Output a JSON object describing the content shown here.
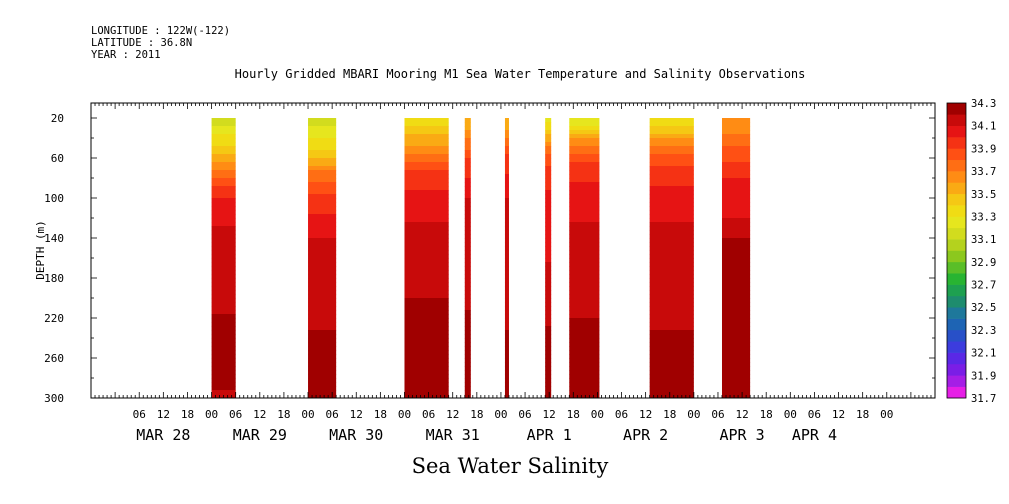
{
  "header": {
    "longitude": "LONGITUDE : 122W(-122)",
    "latitude": "LATITUDE : 36.8N",
    "year": "YEAR : 2011"
  },
  "title": "Hourly Gridded MBARI Mooring M1 Sea Water Temperature and Salinity Observations",
  "chart_data": {
    "type": "heatmap",
    "title": "Hourly Gridded MBARI Mooring M1 Sea Water Temperature and Salinity Observations",
    "variable": "Sea Water Salinity",
    "xlabel": "",
    "ylabel": "DEPTH (m)",
    "x_unit": "hours since 2011-03-27 18:00",
    "xlim": [
      0,
      210
    ],
    "ylim": [
      300,
      5
    ],
    "y_inverted": true,
    "yticks": [
      20,
      60,
      100,
      140,
      180,
      220,
      260,
      300
    ],
    "xticks": [
      {
        "x": 12,
        "label": "06"
      },
      {
        "x": 18,
        "label": "12"
      },
      {
        "x": 24,
        "label": "18"
      },
      {
        "x": 30,
        "label": "00"
      },
      {
        "x": 36,
        "label": "06"
      },
      {
        "x": 42,
        "label": "12"
      },
      {
        "x": 48,
        "label": "18"
      },
      {
        "x": 54,
        "label": "00"
      },
      {
        "x": 60,
        "label": "06"
      },
      {
        "x": 66,
        "label": "12"
      },
      {
        "x": 72,
        "label": "18"
      },
      {
        "x": 78,
        "label": "00"
      },
      {
        "x": 84,
        "label": "06"
      },
      {
        "x": 90,
        "label": "12"
      },
      {
        "x": 96,
        "label": "18"
      },
      {
        "x": 102,
        "label": "00"
      },
      {
        "x": 108,
        "label": "06"
      },
      {
        "x": 114,
        "label": "12"
      },
      {
        "x": 120,
        "label": "18"
      },
      {
        "x": 126,
        "label": "00"
      },
      {
        "x": 132,
        "label": "06"
      },
      {
        "x": 138,
        "label": "12"
      },
      {
        "x": 144,
        "label": "18"
      },
      {
        "x": 150,
        "label": "00"
      },
      {
        "x": 156,
        "label": "06"
      },
      {
        "x": 162,
        "label": "12"
      },
      {
        "x": 168,
        "label": "18"
      },
      {
        "x": 174,
        "label": "00"
      },
      {
        "x": 180,
        "label": "06"
      },
      {
        "x": 186,
        "label": "12"
      },
      {
        "x": 192,
        "label": "18"
      },
      {
        "x": 198,
        "label": "00"
      }
    ],
    "date_labels": [
      {
        "x": 18,
        "label": "MAR 28"
      },
      {
        "x": 42,
        "label": "MAR 29"
      },
      {
        "x": 66,
        "label": "MAR 30"
      },
      {
        "x": 90,
        "label": "MAR 31"
      },
      {
        "x": 114,
        "label": "APR  1"
      },
      {
        "x": 138,
        "label": "APR  2"
      },
      {
        "x": 162,
        "label": "APR  3"
      },
      {
        "x": 180,
        "label": "APR  4"
      }
    ],
    "colorbar": {
      "levels": [
        31.7,
        31.8,
        31.9,
        32.0,
        32.1,
        32.2,
        32.3,
        32.4,
        32.5,
        32.6,
        32.7,
        32.8,
        32.9,
        33.0,
        33.1,
        33.2,
        33.3,
        33.4,
        33.5,
        33.6,
        33.7,
        33.8,
        33.9,
        34.0,
        34.1,
        34.2,
        34.3
      ],
      "labels": [
        "34.3",
        "34.1",
        "33.9",
        "33.7",
        "33.5",
        "33.3",
        "33.1",
        "32.9",
        "32.7",
        "32.5",
        "32.3",
        "32.1",
        "31.9",
        "31.7"
      ],
      "colors": [
        "#e61ee6",
        "#a51ee6",
        "#7a1ee6",
        "#5a28e6",
        "#3c3cde",
        "#2850c8",
        "#1e64b4",
        "#1e789b",
        "#1e8c6e",
        "#1ea050",
        "#28b432",
        "#5abe28",
        "#8cc81e",
        "#b4d21e",
        "#d2dc1e",
        "#e6e61e",
        "#f0dc14",
        "#f5c814",
        "#faaa14",
        "#ff8c14",
        "#ff6e14",
        "#ff5014",
        "#f53214",
        "#e61414",
        "#c80a0a",
        "#a00000"
      ]
    },
    "segments": [
      {
        "x0": 30,
        "x1": 36,
        "layers": [
          [
            20,
            33.15
          ],
          [
            60,
            33.55
          ],
          [
            80,
            33.85
          ],
          [
            100,
            34.0
          ],
          [
            140,
            34.15
          ],
          [
            200,
            34.15
          ],
          [
            230,
            34.25
          ],
          [
            270,
            34.3
          ],
          [
            300,
            34.15
          ]
        ]
      },
      {
        "x0": 54,
        "x1": 61,
        "layers": [
          [
            20,
            33.15
          ],
          [
            50,
            33.4
          ],
          [
            75,
            33.75
          ],
          [
            100,
            33.95
          ],
          [
            140,
            34.1
          ],
          [
            200,
            34.15
          ],
          [
            230,
            34.2
          ],
          [
            260,
            34.3
          ],
          [
            300,
            34.25
          ]
        ]
      },
      {
        "x0": 78,
        "x1": 89,
        "layers": [
          [
            20,
            33.35
          ],
          [
            45,
            33.6
          ],
          [
            70,
            33.9
          ],
          [
            100,
            34.05
          ],
          [
            140,
            34.15
          ],
          [
            200,
            34.2
          ],
          [
            220,
            34.3
          ],
          [
            300,
            34.3
          ]
        ]
      },
      {
        "x0": 93,
        "x1": 94.5,
        "layers": [
          [
            20,
            33.5
          ],
          [
            60,
            33.9
          ],
          [
            100,
            34.1
          ],
          [
            200,
            34.15
          ],
          [
            220,
            34.25
          ],
          [
            300,
            34.3
          ]
        ]
      },
      {
        "x0": 103,
        "x1": 104,
        "layers": [
          [
            20,
            33.5
          ],
          [
            60,
            33.95
          ],
          [
            100,
            34.1
          ],
          [
            220,
            34.15
          ],
          [
            250,
            34.3
          ],
          [
            300,
            34.2
          ]
        ]
      },
      {
        "x0": 113,
        "x1": 114.5,
        "layers": [
          [
            20,
            33.25
          ],
          [
            55,
            33.85
          ],
          [
            100,
            34.05
          ],
          [
            220,
            34.15
          ],
          [
            240,
            34.3
          ],
          [
            300,
            34.2
          ]
        ]
      },
      {
        "x0": 119,
        "x1": 126.5,
        "layers": [
          [
            20,
            33.2
          ],
          [
            45,
            33.7
          ],
          [
            65,
            33.95
          ],
          [
            100,
            34.05
          ],
          [
            140,
            34.15
          ],
          [
            220,
            34.2
          ],
          [
            230,
            34.3
          ],
          [
            300,
            34.25
          ]
        ]
      },
      {
        "x0": 139,
        "x1": 150,
        "layers": [
          [
            20,
            33.3
          ],
          [
            45,
            33.7
          ],
          [
            70,
            33.95
          ],
          [
            100,
            34.05
          ],
          [
            140,
            34.15
          ],
          [
            230,
            34.2
          ],
          [
            240,
            34.3
          ],
          [
            300,
            34.25
          ]
        ]
      },
      {
        "x0": 157,
        "x1": 164,
        "layers": [
          [
            20,
            33.6
          ],
          [
            55,
            33.85
          ],
          [
            80,
            34.0
          ],
          [
            120,
            34.1
          ],
          [
            140,
            34.2
          ],
          [
            260,
            34.2
          ],
          [
            270,
            34.3
          ],
          [
            300,
            34.3
          ]
        ]
      }
    ]
  }
}
